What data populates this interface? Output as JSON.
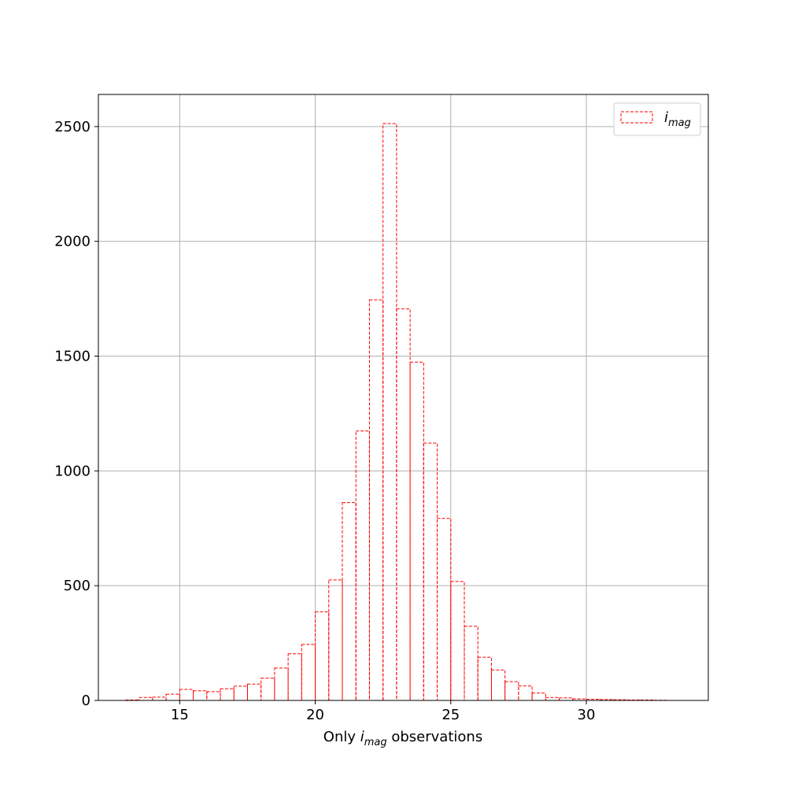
{
  "chart_data": {
    "type": "bar",
    "histtype": "step-dashed",
    "bin_start": 13.0,
    "bin_width": 0.5,
    "values": [
      2,
      13,
      14,
      27,
      48,
      42,
      38,
      51,
      62,
      71,
      97,
      141,
      203,
      244,
      386,
      525,
      862,
      1174,
      1745,
      2513,
      1706,
      1474,
      1121,
      793,
      518,
      323,
      188,
      133,
      82,
      63,
      32,
      13,
      11,
      7,
      5,
      4,
      3,
      2,
      2,
      1
    ],
    "series": [
      {
        "name_base": "i",
        "name_sub": "mag",
        "color": "#ff0000"
      }
    ],
    "xlabel": {
      "prefix": "Only ",
      "var_base": "i",
      "var_sub": "mag",
      "suffix": " observations"
    },
    "ylabel": "",
    "title": "",
    "xlim": [
      12.0,
      34.5
    ],
    "ylim": [
      0,
      2640
    ],
    "xticks": [
      15,
      20,
      25,
      30
    ],
    "yticks": [
      0,
      500,
      1000,
      1500,
      2000,
      2500
    ],
    "grid": true,
    "legend_position": "top-right"
  }
}
